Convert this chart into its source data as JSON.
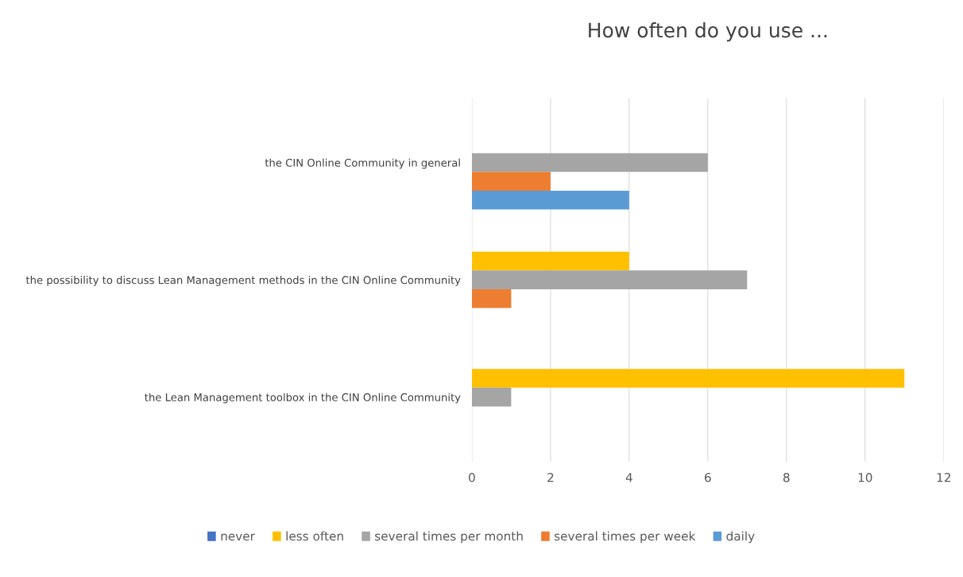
{
  "chart_data": {
    "type": "bar",
    "orientation": "horizontal",
    "title": "How often do you use ...",
    "categories": [
      "the CIN Online Community in general",
      "the possibility to discuss Lean Management methods in the CIN Online Community",
      "the Lean Management toolbox in the CIN Online Community"
    ],
    "series": [
      {
        "name": "never",
        "color": "#4472c4",
        "values": [
          0,
          0,
          0
        ]
      },
      {
        "name": "less often",
        "color": "#ffc000",
        "values": [
          0,
          4,
          11
        ]
      },
      {
        "name": "several times per month",
        "color": "#a5a5a5",
        "values": [
          6,
          7,
          1
        ]
      },
      {
        "name": "several times per week",
        "color": "#ed7d31",
        "values": [
          2,
          1,
          0
        ]
      },
      {
        "name": "daily",
        "color": "#5b9bd5",
        "values": [
          4,
          0,
          0
        ]
      }
    ],
    "xlim": [
      0,
      12
    ],
    "xticks": [
      0,
      2,
      4,
      6,
      8,
      10,
      12
    ],
    "grid": "x",
    "legend": "bottom"
  }
}
